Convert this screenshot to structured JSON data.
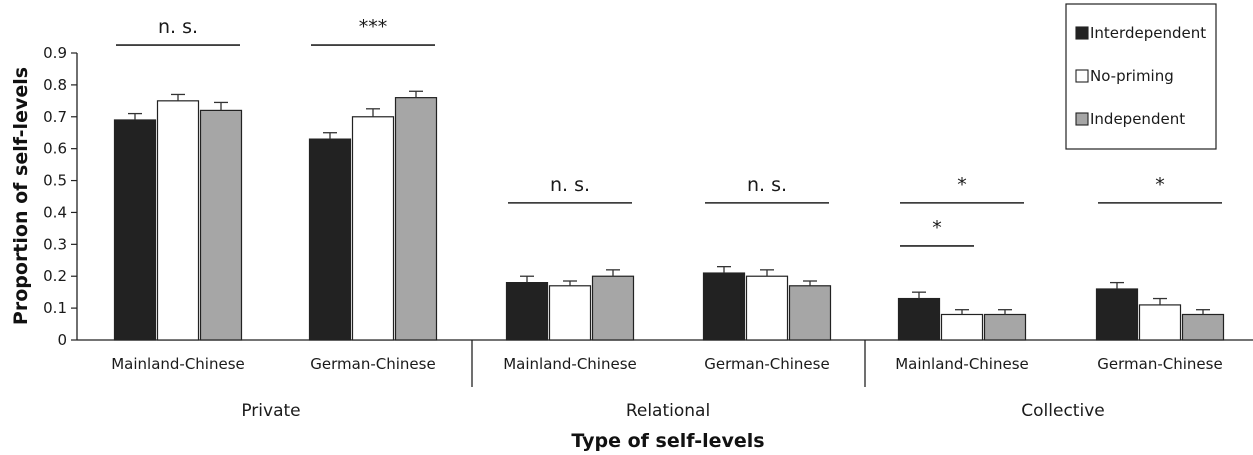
{
  "chart_data": {
    "type": "bar",
    "xlabel": "Type of self-levels",
    "ylabel": "Proportion  of self-levels",
    "ylim": [
      0,
      0.9
    ],
    "yticks": [
      "0",
      "0.1",
      "0.2",
      "0.3",
      "0.4",
      "0.5",
      "0.6",
      "0.7",
      "0.8",
      "0.9"
    ],
    "legend_position": "top-right",
    "groups": [
      "Private",
      "Relational",
      "Collective"
    ],
    "categories": [
      "Mainland-Chinese",
      "German-Chinese",
      "Mainland-Chinese",
      "German-Chinese",
      "Mainland-Chinese",
      "German-Chinese"
    ],
    "series": [
      {
        "name": "Interdependent",
        "color": "#222222",
        "values": [
          0.69,
          0.63,
          0.18,
          0.21,
          0.13,
          0.16
        ],
        "errors": [
          0.02,
          0.02,
          0.02,
          0.02,
          0.02,
          0.02
        ]
      },
      {
        "name": "No-priming",
        "color": "#ffffff",
        "values": [
          0.75,
          0.7,
          0.17,
          0.2,
          0.08,
          0.11
        ],
        "errors": [
          0.02,
          0.025,
          0.015,
          0.02,
          0.015,
          0.02
        ]
      },
      {
        "name": "Independent",
        "color": "#a6a6a6",
        "values": [
          0.72,
          0.76,
          0.2,
          0.17,
          0.08,
          0.08
        ],
        "errors": [
          0.025,
          0.02,
          0.02,
          0.015,
          0.015,
          0.015
        ]
      }
    ],
    "significance": [
      {
        "label": "n. s.",
        "category": 0,
        "level": 0.925
      },
      {
        "label": "***",
        "category": 1,
        "level": 0.925
      },
      {
        "label": "n. s.",
        "category": 2,
        "level": 0.43
      },
      {
        "label": "n. s.",
        "category": 3,
        "level": 0.43
      },
      {
        "label": "*",
        "category": 4,
        "level": 0.43
      },
      {
        "label": "*",
        "category": 4,
        "level": 0.295,
        "span": "partial"
      },
      {
        "label": "*",
        "category": 5,
        "level": 0.43
      }
    ]
  }
}
